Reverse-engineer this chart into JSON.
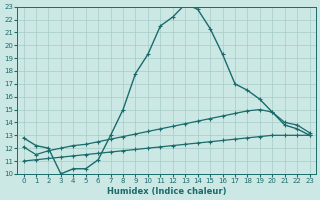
{
  "xlabel": "Humidex (Indice chaleur)",
  "xlim": [
    -0.5,
    23.5
  ],
  "ylim": [
    10,
    23
  ],
  "xticks": [
    0,
    1,
    2,
    3,
    4,
    5,
    6,
    7,
    8,
    9,
    10,
    11,
    12,
    13,
    14,
    15,
    16,
    17,
    18,
    19,
    20,
    21,
    22,
    23
  ],
  "yticks": [
    10,
    11,
    12,
    13,
    14,
    15,
    16,
    17,
    18,
    19,
    20,
    21,
    22,
    23
  ],
  "background_color": "#cce8e5",
  "grid_color": "#a8ccc9",
  "line_color": "#1a6b6b",
  "line1_x": [
    0,
    1,
    2,
    3,
    4,
    5,
    6,
    7,
    8,
    9,
    10,
    11,
    12,
    13,
    14,
    15,
    16,
    17,
    18,
    19,
    20,
    21,
    22,
    23
  ],
  "line1_y": [
    12.8,
    12.2,
    12.0,
    10.0,
    10.4,
    10.4,
    11.1,
    13.0,
    15.0,
    17.8,
    19.3,
    21.5,
    22.2,
    23.2,
    22.8,
    21.3,
    19.3,
    17.0,
    16.5,
    15.8,
    14.8,
    13.8,
    13.5,
    13.0
  ],
  "line2_x": [
    0,
    1,
    2,
    3,
    4,
    5,
    6,
    7,
    8,
    9,
    10,
    11,
    12,
    13,
    14,
    15,
    16,
    17,
    18,
    19,
    20,
    21,
    22,
    23
  ],
  "line2_y": [
    12.1,
    11.5,
    11.8,
    12.0,
    12.2,
    12.3,
    12.5,
    12.7,
    12.9,
    13.1,
    13.3,
    13.5,
    13.7,
    13.9,
    14.1,
    14.3,
    14.5,
    14.7,
    14.9,
    15.0,
    14.8,
    14.0,
    13.8,
    13.2
  ],
  "line3_x": [
    0,
    1,
    2,
    3,
    4,
    5,
    6,
    7,
    8,
    9,
    10,
    11,
    12,
    13,
    14,
    15,
    16,
    17,
    18,
    19,
    20,
    21,
    22,
    23
  ],
  "line3_y": [
    11.0,
    11.1,
    11.2,
    11.3,
    11.4,
    11.5,
    11.6,
    11.7,
    11.8,
    11.9,
    12.0,
    12.1,
    12.2,
    12.3,
    12.4,
    12.5,
    12.6,
    12.7,
    12.8,
    12.9,
    13.0,
    13.0,
    13.0,
    13.0
  ]
}
